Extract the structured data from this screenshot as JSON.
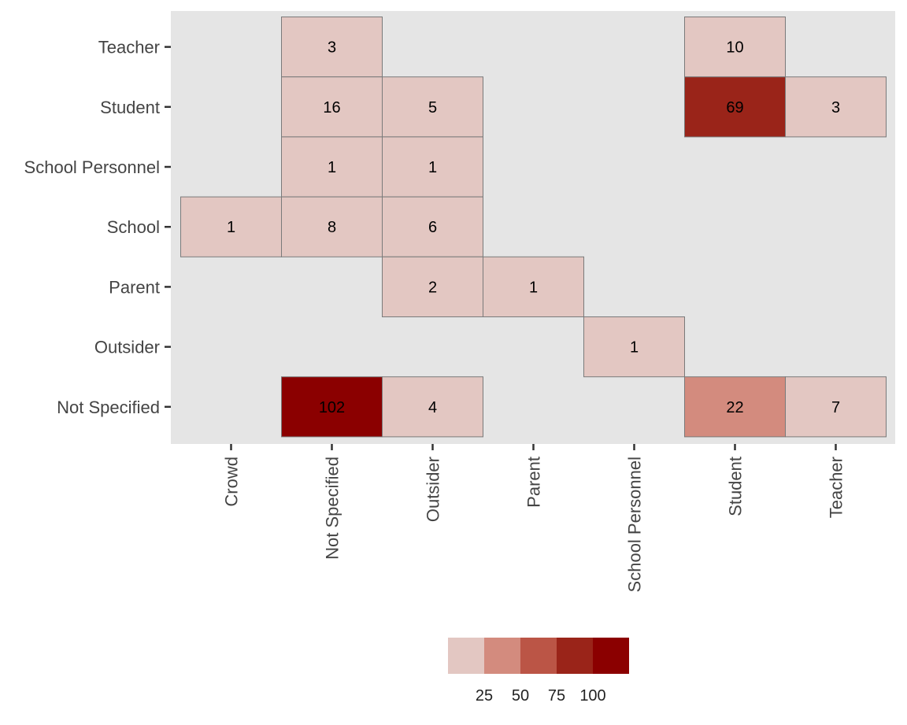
{
  "chart_data": {
    "type": "heatmap",
    "x_categories": [
      "Crowd",
      "Not Specified",
      "Outsider",
      "Parent",
      "School Personnel",
      "Student",
      "Teacher"
    ],
    "y_categories": [
      "Not Specified",
      "Outsider",
      "Parent",
      "School",
      "School Personnel",
      "Student",
      "Teacher"
    ],
    "cells": [
      {
        "x": "Not Specified",
        "y": "Teacher",
        "value": 3
      },
      {
        "x": "Student",
        "y": "Teacher",
        "value": 10
      },
      {
        "x": "Not Specified",
        "y": "Student",
        "value": 16
      },
      {
        "x": "Outsider",
        "y": "Student",
        "value": 5
      },
      {
        "x": "Student",
        "y": "Student",
        "value": 69
      },
      {
        "x": "Teacher",
        "y": "Student",
        "value": 3
      },
      {
        "x": "Not Specified",
        "y": "School Personnel",
        "value": 1
      },
      {
        "x": "Outsider",
        "y": "School Personnel",
        "value": 1
      },
      {
        "x": "Crowd",
        "y": "School",
        "value": 1
      },
      {
        "x": "Not Specified",
        "y": "School",
        "value": 8
      },
      {
        "x": "Outsider",
        "y": "School",
        "value": 6
      },
      {
        "x": "Outsider",
        "y": "Parent",
        "value": 2
      },
      {
        "x": "Parent",
        "y": "Parent",
        "value": 1
      },
      {
        "x": "School Personnel",
        "y": "Outsider",
        "value": 1
      },
      {
        "x": "Not Specified",
        "y": "Not Specified",
        "value": 102
      },
      {
        "x": "Outsider",
        "y": "Not Specified",
        "value": 4
      },
      {
        "x": "Student",
        "y": "Not Specified",
        "value": 22
      },
      {
        "x": "Teacher",
        "y": "Not Specified",
        "value": 7
      }
    ],
    "legend": {
      "position": "bottom",
      "ticks": [
        25,
        50,
        75,
        100
      ],
      "bins": [
        {
          "color": "#e3c7c2"
        },
        {
          "color": "#d38b7e"
        },
        {
          "color": "#bb5546"
        },
        {
          "color": "#9a2419"
        },
        {
          "color": "#8b0000"
        }
      ]
    },
    "panel_color": "#e5e5e5",
    "grid": false,
    "title": "",
    "xlabel": "",
    "ylabel": ""
  }
}
